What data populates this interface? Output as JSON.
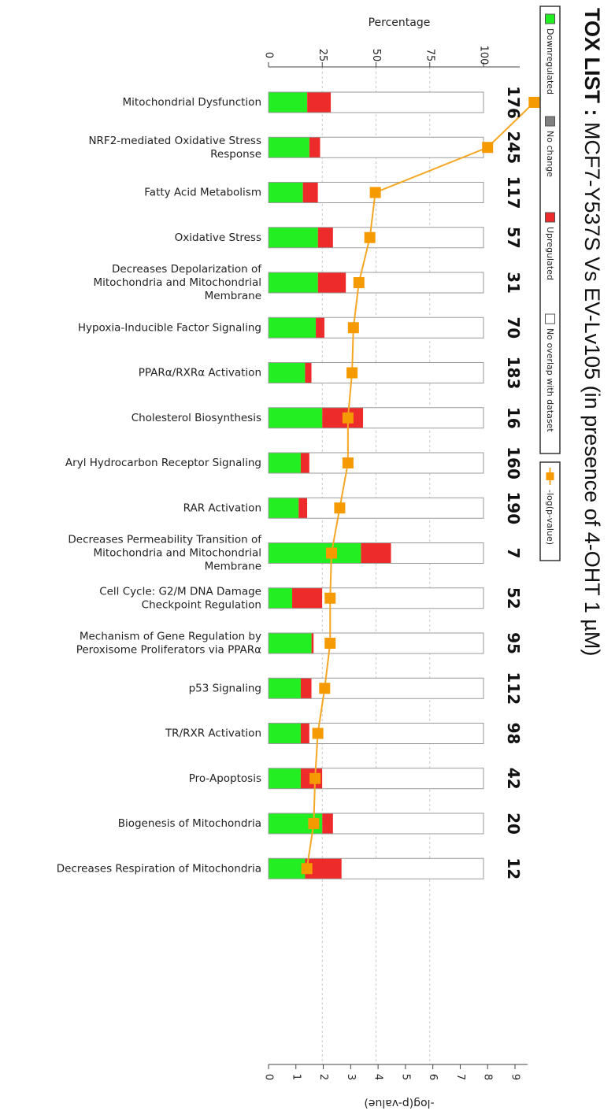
{
  "chart_data": {
    "type": "bar",
    "title_bold": "TOX LIST",
    "title_sep": " : ",
    "title_rest": "MCF7-Y537S Vs EV-Lv105 (in presence of 4-OHT 1 µM)",
    "percent_axis_label": "Percentage",
    "pvalue_axis_label": "-log(p-value)",
    "percent_ticks": [
      "0",
      "25",
      "50",
      "75",
      "100"
    ],
    "pvalue_ticks": [
      "0",
      "1",
      "2",
      "3",
      "4",
      "5",
      "6",
      "7",
      "8",
      "9"
    ],
    "percent_range": [
      0,
      100
    ],
    "pvalue_range": [
      0,
      9.8
    ],
    "legend": {
      "placement": "right",
      "items": [
        "Downregulated",
        "No change",
        "Upregulated",
        "No overlap with dataset"
      ],
      "line_item": "-log(p-value)"
    },
    "colors": {
      "downregulated": "#22ee22",
      "no_change": "#808080",
      "upregulated": "#ee2b2b",
      "no_overlap": "#ffffff",
      "line": "#f5a623",
      "marker": "#f59a00"
    },
    "categories": [
      "Mitochondrial Dysfunction",
      "NRF2-mediated Oxidative Stress Response",
      "Fatty Acid Metabolism",
      "Oxidative Stress",
      "Decreases Depolarization of Mitochondria and Mitochondrial Membrane",
      "Hypoxia-Inducible Factor Signaling",
      "PPARα/RXRα Activation",
      "Cholesterol Biosynthesis",
      "Aryl Hydrocarbon Receptor Signaling",
      "RAR Activation",
      "Decreases Permeability Transition of Mitochondria and Mitochondrial Membrane",
      "Cell Cycle: G2/M DNA Damage Checkpoint Regulation",
      "Mechanism of Gene Regulation by Peroxisome Proliferators via PPARα",
      "p53 Signaling",
      "TR/RXR Activation",
      "Pro-Apoptosis",
      "Biogenesis of Mitochondria",
      "Decreases Respiration of Mitochondria"
    ],
    "label_lines": [
      [
        "Mitochondrial Dysfunction"
      ],
      [
        "NRF2-mediated Oxidative Stress",
        "Response"
      ],
      [
        "Fatty Acid Metabolism"
      ],
      [
        "Oxidative Stress"
      ],
      [
        "Decreases Depolarization of",
        "Mitochondria and Mitochondrial",
        "Membrane"
      ],
      [
        "Hypoxia-Inducible Factor Signaling"
      ],
      [
        "PPARα/RXRα Activation"
      ],
      [
        "Cholesterol Biosynthesis"
      ],
      [
        "Aryl Hydrocarbon Receptor Signaling"
      ],
      [
        "RAR Activation"
      ],
      [
        "Decreases Permeability Transition of",
        "Mitochondria and Mitochondrial",
        "Membrane"
      ],
      [
        "Cell Cycle: G2/M DNA Damage",
        "Checkpoint Regulation"
      ],
      [
        "Mechanism of Gene Regulation by",
        "Peroxisome Proliferators via PPARα"
      ],
      [
        "p53 Signaling"
      ],
      [
        "TR/RXR Activation"
      ],
      [
        "Pro-Apoptosis"
      ],
      [
        "Biogenesis of Mitochondria"
      ],
      [
        "Decreases Respiration of Mitochondria"
      ]
    ],
    "totals": [
      "176",
      "245",
      "117",
      "57",
      "31",
      "70",
      "183",
      "16",
      "160",
      "190",
      "7",
      "52",
      "95",
      "112",
      "98",
      "42",
      "20",
      "12"
    ],
    "series": [
      {
        "name": "Downregulated",
        "values": [
          18,
          19,
          16,
          23,
          23,
          22,
          17,
          25,
          15,
          14,
          43,
          11,
          20,
          15,
          15,
          15,
          25,
          17
        ]
      },
      {
        "name": "No change",
        "values": [
          0,
          0,
          0,
          0,
          0,
          0,
          0,
          0,
          0,
          0,
          0,
          0,
          0,
          0,
          0,
          0,
          0,
          0
        ]
      },
      {
        "name": "Upregulated",
        "values": [
          11,
          5,
          7,
          7,
          13,
          4,
          3,
          19,
          4,
          4,
          14,
          14,
          1,
          5,
          4,
          10,
          5,
          17
        ]
      },
      {
        "name": "No overlap with dataset",
        "values": [
          71,
          76,
          77,
          70,
          64,
          74,
          80,
          56,
          81,
          82,
          43,
          75,
          79,
          80,
          81,
          75,
          70,
          66
        ]
      }
    ],
    "neg_log_p": [
      9.7,
      8.0,
      3.9,
      3.7,
      3.3,
      3.1,
      3.05,
      2.9,
      2.9,
      2.6,
      2.3,
      2.25,
      2.25,
      2.05,
      1.8,
      1.7,
      1.65,
      1.4
    ]
  }
}
